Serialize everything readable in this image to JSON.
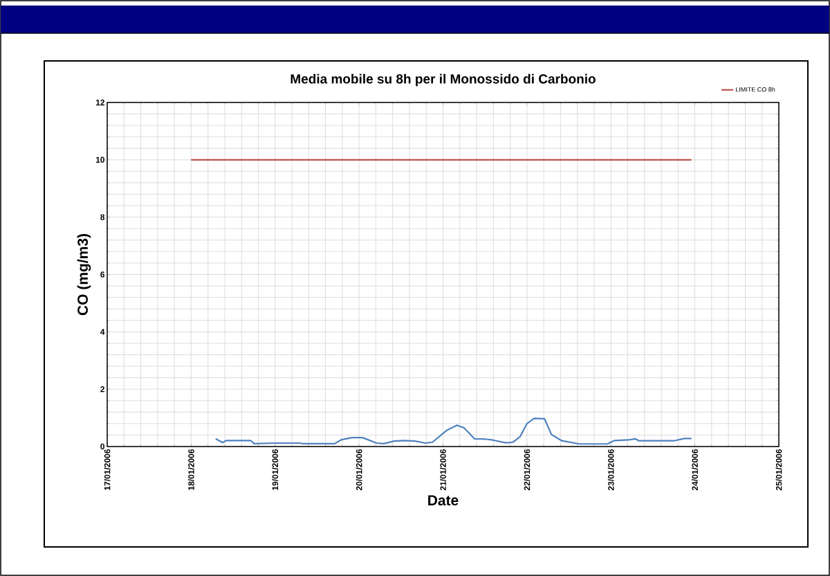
{
  "chart_data": {
    "type": "line",
    "title": "Media mobile su 8h per il Monossido di Carbonio",
    "xlabel": "Date",
    "ylabel": "CO (mg/m3)",
    "xlim": [
      "2006-01-17",
      "2006-01-25"
    ],
    "xticks": [
      {
        "value": "2006-01-17",
        "label": "17/01/2006"
      },
      {
        "value": "2006-01-18",
        "label": "18/01/2006"
      },
      {
        "value": "2006-01-19",
        "label": "19/01/2006"
      },
      {
        "value": "2006-01-20",
        "label": "20/01/2006"
      },
      {
        "value": "2006-01-21",
        "label": "21/01/2006"
      },
      {
        "value": "2006-01-22",
        "label": "22/01/2006"
      },
      {
        "value": "2006-01-23",
        "label": "23/01/2006"
      },
      {
        "value": "2006-01-24",
        "label": "24/01/2006"
      },
      {
        "value": "2006-01-25",
        "label": "25/01/2006"
      }
    ],
    "ylim": [
      0,
      12
    ],
    "yticks": [
      0,
      2,
      4,
      6,
      8,
      10,
      12
    ],
    "grid": true,
    "legend": "top right",
    "marker": "none",
    "line_style": "solid",
    "series": [
      {
        "color": "#4f81bd",
        "x": [
          "2006-01-18T07:00",
          "2006-01-18T09:00",
          "2006-01-18T10:00",
          "2006-01-18T17:00",
          "2006-01-18T18:00",
          "2006-01-19T00:00",
          "2006-01-19T07:00",
          "2006-01-19T08:00",
          "2006-01-19T17:00",
          "2006-01-19T19:00",
          "2006-01-19T22:00",
          "2006-01-20T01:00",
          "2006-01-20T05:00",
          "2006-01-20T07:00",
          "2006-01-20T10:00",
          "2006-01-20T13:00",
          "2006-01-20T16:00",
          "2006-01-20T19:00",
          "2006-01-20T21:00",
          "2006-01-21T01:00",
          "2006-01-21T04:00",
          "2006-01-21T06:00",
          "2006-01-21T09:00",
          "2006-01-21T12:00",
          "2006-01-21T14:00",
          "2006-01-21T18:00",
          "2006-01-21T20:00",
          "2006-01-21T22:00",
          "2006-01-22T00:00",
          "2006-01-22T02:00",
          "2006-01-22T05:00",
          "2006-01-22T07:00",
          "2006-01-22T10:00",
          "2006-01-22T15:00",
          "2006-01-22T23:00",
          "2006-01-23T01:00",
          "2006-01-23T05:00",
          "2006-01-23T07:00",
          "2006-01-23T08:00",
          "2006-01-23T18:00",
          "2006-01-23T21:00",
          "2006-01-23T23:00"
        ],
        "values": [
          0.27,
          0.14,
          0.21,
          0.21,
          0.1,
          0.12,
          0.12,
          0.1,
          0.1,
          0.24,
          0.31,
          0.31,
          0.12,
          0.1,
          0.19,
          0.21,
          0.19,
          0.12,
          0.15,
          0.56,
          0.74,
          0.65,
          0.27,
          0.26,
          0.23,
          0.13,
          0.15,
          0.34,
          0.8,
          0.98,
          0.97,
          0.42,
          0.2,
          0.09,
          0.09,
          0.21,
          0.23,
          0.27,
          0.2,
          0.2,
          0.28,
          0.28
        ]
      },
      {
        "name": "LIMITE CO 8h",
        "color": "#c0504d",
        "x": [
          "2006-01-18T00:00",
          "2006-01-23T23:00"
        ],
        "values": [
          10,
          10
        ]
      }
    ]
  }
}
